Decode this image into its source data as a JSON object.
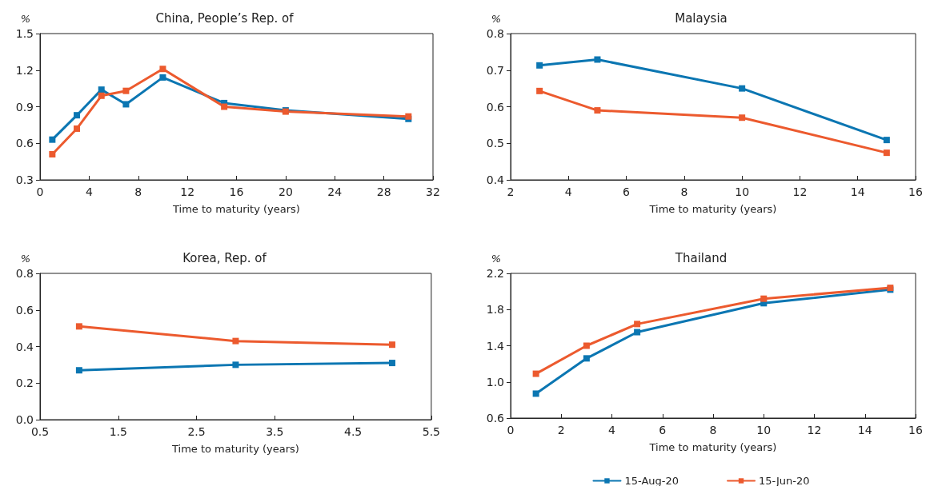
{
  "chart_data": [
    {
      "type": "line",
      "title": "China, People’s Rep. of",
      "xlabel": "Time to maturity (years)",
      "ylabel": "%",
      "x": [
        1,
        3,
        5,
        7,
        10,
        15,
        20,
        30
      ],
      "series": [
        {
          "color": "#0b76b2",
          "values": [
            0.63,
            0.83,
            1.04,
            0.92,
            1.14,
            0.93,
            0.87,
            0.8
          ]
        },
        {
          "color": "#ec5a2e",
          "values": [
            0.51,
            0.72,
            0.99,
            1.03,
            1.21,
            0.9,
            0.86,
            0.82
          ]
        }
      ],
      "xlim": [
        0,
        32
      ],
      "xticks": [
        0,
        4,
        8,
        12,
        16,
        20,
        24,
        28,
        32
      ],
      "ylim": [
        0.3,
        1.5
      ],
      "yticks": [
        0.3,
        0.6,
        0.9,
        1.2,
        1.5
      ],
      "grid": false,
      "legend": false,
      "marker": "square",
      "line_style": "solid"
    },
    {
      "type": "line",
      "title": "Malaysia",
      "xlabel": "Time to maturity (years)",
      "ylabel": "%",
      "x": [
        3,
        5,
        10,
        15
      ],
      "series": [
        {
          "color": "#0b76b2",
          "values": [
            0.713,
            0.729,
            0.65,
            0.509
          ]
        },
        {
          "color": "#ec5a2e",
          "values": [
            0.643,
            0.59,
            0.57,
            0.474
          ]
        }
      ],
      "xlim": [
        2,
        16
      ],
      "xticks": [
        2,
        4,
        6,
        8,
        10,
        12,
        14,
        16
      ],
      "ylim": [
        0.4,
        0.8
      ],
      "yticks": [
        0.4,
        0.5,
        0.6,
        0.7,
        0.8
      ],
      "grid": false,
      "legend": false,
      "marker": "square",
      "line_style": "solid"
    },
    {
      "type": "line",
      "title": "Korea, Rep. of",
      "xlabel": "Time to maturity (years)",
      "ylabel": "%",
      "x": [
        1,
        3,
        5
      ],
      "series": [
        {
          "color": "#0b76b2",
          "values": [
            0.27,
            0.3,
            0.31
          ]
        },
        {
          "color": "#ec5a2e",
          "values": [
            0.51,
            0.43,
            0.41
          ]
        }
      ],
      "xlim": [
        0.5,
        5.5
      ],
      "xticks": [
        0.5,
        1.5,
        2.5,
        3.5,
        4.5,
        5.5
      ],
      "ylim": [
        0,
        0.8
      ],
      "yticks": [
        {
          "value": 0,
          "label": "0.0"
        },
        0.2,
        0.4,
        0.6,
        0.8
      ],
      "grid": false,
      "legend": false,
      "marker": "square",
      "line_style": "solid"
    },
    {
      "type": "line",
      "title": "Thailand",
      "xlabel": "Time to maturity (years)",
      "ylabel": "%",
      "x": [
        1,
        3,
        5,
        10,
        15
      ],
      "series": [
        {
          "name": "15-Aug-20",
          "color": "#0b76b2",
          "values": [
            0.87,
            1.26,
            1.55,
            1.87,
            2.02
          ]
        },
        {
          "name": "15-Jun-20",
          "color": "#ec5a2e",
          "values": [
            1.09,
            1.4,
            1.64,
            1.92,
            2.04
          ]
        }
      ],
      "xlim": [
        0,
        16
      ],
      "xticks": [
        0,
        2,
        4,
        6,
        8,
        10,
        12,
        14,
        16
      ],
      "ylim": [
        0.6,
        2.2
      ],
      "yticks": [
        0.6,
        {
          "value": 1,
          "label": "1.0"
        },
        1.4,
        1.8,
        2.2
      ],
      "grid": false,
      "legend": "bottom",
      "marker": "square",
      "line_style": "solid"
    }
  ]
}
